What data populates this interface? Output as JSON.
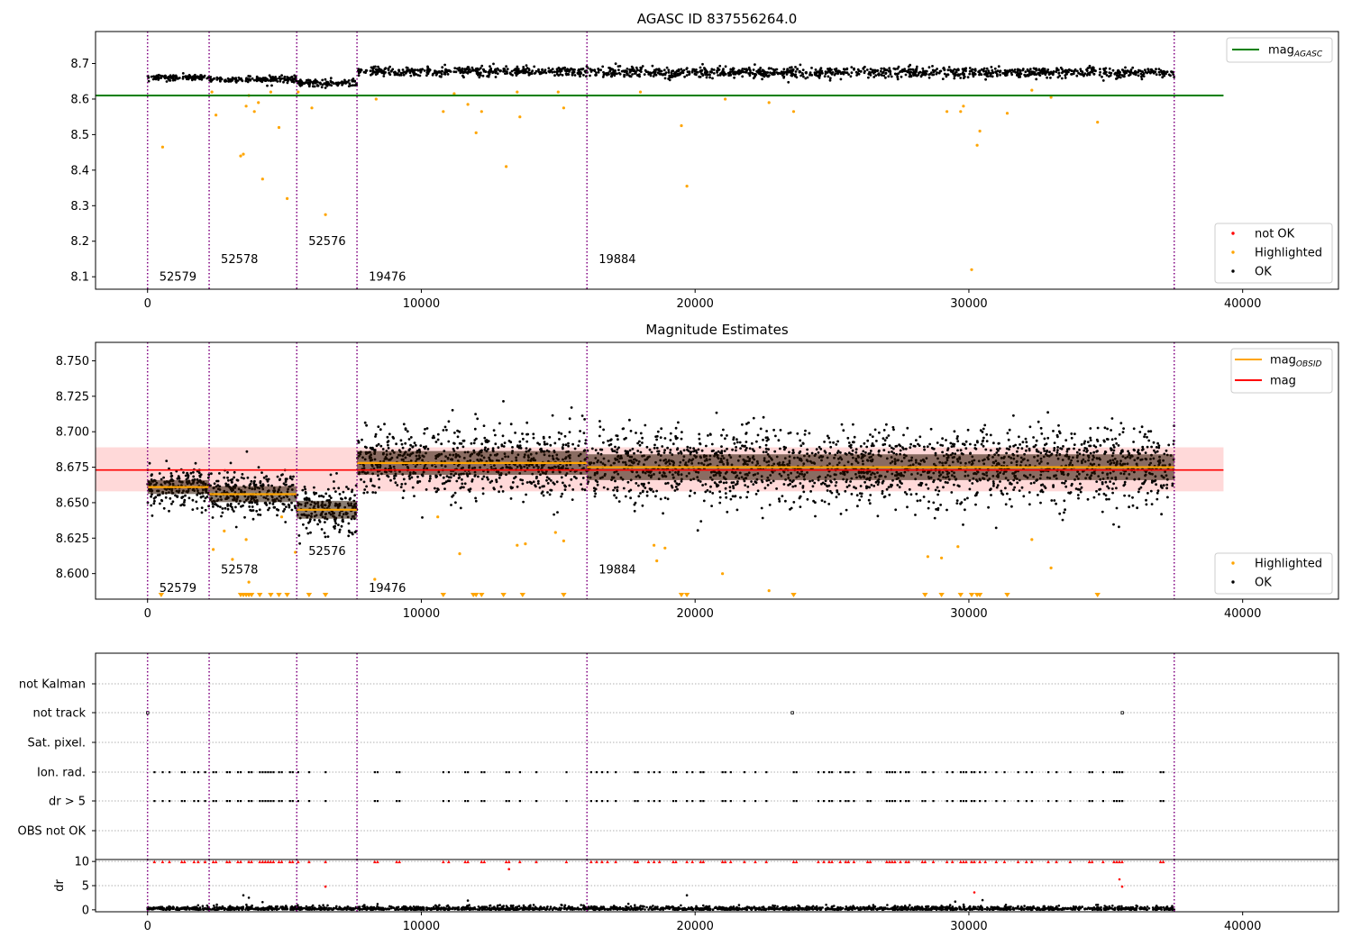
{
  "colors": {
    "ok": "#000000",
    "highlighted": "#ffa500",
    "not_ok": "#ff0000",
    "mag_agasc_line": "#008000",
    "mag_line": "#ff0000",
    "mag_band": "#ffd9d9",
    "mag_obsid_line": "#ffa500",
    "obs_boundary": "#800080",
    "grid": "#b0b0b0"
  },
  "chart_data": [
    {
      "type": "scatter",
      "title": "AGASC ID 837556264.0",
      "xlim": [
        -1900,
        43500
      ],
      "ylim": [
        8.065,
        8.79
      ],
      "xticks": [
        0,
        10000,
        20000,
        30000,
        40000
      ],
      "yticks": [
        8.1,
        8.2,
        8.3,
        8.4,
        8.5,
        8.6,
        8.7
      ],
      "ytick_labels": [
        "8.1",
        "8.2",
        "8.3",
        "8.4",
        "8.5",
        "8.6",
        "8.7"
      ],
      "legend_lines": [
        {
          "label": "mag",
          "sub": "AGASC",
          "color": "#008000"
        }
      ],
      "legend_points": [
        {
          "label": "not OK",
          "color": "#ff0000"
        },
        {
          "label": "Highlighted",
          "color": "#ffa500"
        },
        {
          "label": "OK",
          "color": "#000000"
        }
      ],
      "mag_agasc": 8.61,
      "mag_agasc_xrange": [
        -1900,
        39300
      ],
      "obs_boundaries": [
        0,
        2250,
        5450,
        7650,
        16050,
        37500
      ],
      "observations": [
        {
          "label": "52579",
          "x_start": 0,
          "x_end": 2250,
          "mean": 8.661,
          "spread": 0.007,
          "label_y": 8.1
        },
        {
          "label": "52578",
          "x_start": 2250,
          "x_end": 5450,
          "mean": 8.656,
          "spread": 0.008,
          "label_y": 8.15
        },
        {
          "label": "52576",
          "x_start": 5450,
          "x_end": 7650,
          "mean": 8.645,
          "spread": 0.009,
          "label_y": 8.2
        },
        {
          "label": "19476",
          "x_start": 7650,
          "x_end": 16050,
          "mean": 8.678,
          "spread": 0.012,
          "label_y": 8.1
        },
        {
          "label": "19884",
          "x_start": 16050,
          "x_end": 37500,
          "mean": 8.675,
          "spread": 0.013,
          "label_y": 8.15
        }
      ],
      "highlighted_points": [
        [
          550,
          8.465
        ],
        [
          2350,
          8.62
        ],
        [
          2500,
          8.555
        ],
        [
          3400,
          8.44
        ],
        [
          3500,
          8.445
        ],
        [
          3600,
          8.58
        ],
        [
          3700,
          8.61
        ],
        [
          3900,
          8.565
        ],
        [
          4050,
          8.59
        ],
        [
          4200,
          8.375
        ],
        [
          4500,
          8.62
        ],
        [
          4800,
          8.52
        ],
        [
          5100,
          8.32
        ],
        [
          5500,
          8.62
        ],
        [
          6000,
          8.575
        ],
        [
          6500,
          8.275
        ],
        [
          8350,
          8.6
        ],
        [
          10800,
          8.565
        ],
        [
          11200,
          8.615
        ],
        [
          11700,
          8.585
        ],
        [
          12000,
          8.505
        ],
        [
          12200,
          8.565
        ],
        [
          13100,
          8.41
        ],
        [
          13500,
          8.62
        ],
        [
          13600,
          8.55
        ],
        [
          15000,
          8.62
        ],
        [
          15200,
          8.575
        ],
        [
          18000,
          8.62
        ],
        [
          19500,
          8.525
        ],
        [
          19700,
          8.355
        ],
        [
          21100,
          8.6
        ],
        [
          22700,
          8.59
        ],
        [
          23600,
          8.565
        ],
        [
          29200,
          8.565
        ],
        [
          29700,
          8.565
        ],
        [
          29800,
          8.58
        ],
        [
          30100,
          8.12
        ],
        [
          30300,
          8.47
        ],
        [
          30400,
          8.51
        ],
        [
          31400,
          8.56
        ],
        [
          32300,
          8.625
        ],
        [
          33000,
          8.605
        ],
        [
          34700,
          8.535
        ]
      ]
    },
    {
      "type": "scatter",
      "title": "Magnitude Estimates",
      "xlim": [
        -1900,
        43500
      ],
      "ylim": [
        8.582,
        8.763
      ],
      "xticks": [
        0,
        10000,
        20000,
        30000,
        40000
      ],
      "yticks": [
        8.6,
        8.625,
        8.65,
        8.675,
        8.7,
        8.725,
        8.75
      ],
      "ytick_labels": [
        "8.600",
        "8.625",
        "8.650",
        "8.675",
        "8.700",
        "8.725",
        "8.750"
      ],
      "legend_lines": [
        {
          "label": "mag",
          "sub": "OBSID",
          "color": "#ffa500"
        },
        {
          "label": "mag",
          "sub": "",
          "color": "#ff0000"
        }
      ],
      "legend_points": [
        {
          "label": "Highlighted",
          "color": "#ffa500"
        },
        {
          "label": "OK",
          "color": "#000000"
        }
      ],
      "mag": 8.673,
      "mag_band": [
        8.658,
        8.689
      ],
      "mag_xrange": [
        -1900,
        39300
      ],
      "obs_label_y": [
        8.59,
        8.603,
        8.616,
        8.59,
        8.603
      ],
      "highlighted_points": [
        [
          2400,
          8.617
        ],
        [
          2800,
          8.63
        ],
        [
          3100,
          8.61
        ],
        [
          3600,
          8.624
        ],
        [
          3700,
          8.594
        ],
        [
          4900,
          8.64
        ],
        [
          5400,
          8.615
        ],
        [
          8300,
          8.596
        ],
        [
          10600,
          8.64
        ],
        [
          11400,
          8.614
        ],
        [
          13500,
          8.62
        ],
        [
          13800,
          8.621
        ],
        [
          14900,
          8.629
        ],
        [
          15200,
          8.623
        ],
        [
          18500,
          8.62
        ],
        [
          18600,
          8.609
        ],
        [
          18900,
          8.618
        ],
        [
          21000,
          8.6
        ],
        [
          22700,
          8.588
        ],
        [
          28500,
          8.612
        ],
        [
          29000,
          8.611
        ],
        [
          29600,
          8.619
        ],
        [
          32300,
          8.624
        ],
        [
          33000,
          8.604
        ]
      ],
      "below_range_markers": [
        500,
        3400,
        3500,
        3600,
        3700,
        3800,
        4100,
        4500,
        4800,
        5100,
        5900,
        6500,
        10800,
        11900,
        12000,
        12200,
        13000,
        13700,
        15200,
        19500,
        19700,
        23600,
        28400,
        29000,
        29700,
        30100,
        30300,
        30400,
        31400,
        34700
      ]
    },
    {
      "type": "scatter",
      "title": "",
      "xlim": [
        -1900,
        43500
      ],
      "xticks": [
        0,
        10000,
        20000,
        30000,
        40000
      ],
      "flag_labels": [
        "not Kalman",
        "not track",
        "Sat. pixel.",
        "Ion. rad.",
        "dr > 5",
        "OBS not OK"
      ],
      "not_track_x": [
        0,
        23550,
        35600
      ],
      "ion_rad_x": [
        250,
        550,
        800,
        1250,
        1350,
        1700,
        1850,
        2100,
        2400,
        2500,
        2900,
        3000,
        3300,
        3400,
        3700,
        3800,
        4100,
        4200,
        4300,
        4400,
        4500,
        4600,
        4800,
        4900,
        5200,
        5300,
        5500,
        5900,
        6500,
        8300,
        8400,
        9100,
        9200,
        10800,
        11000,
        11600,
        11700,
        12200,
        12300,
        13100,
        13200,
        13600,
        14200,
        15300,
        16200,
        16400,
        16600,
        16800,
        17100,
        17800,
        17900,
        18300,
        18500,
        18700,
        19200,
        19300,
        19700,
        19900,
        20200,
        20300,
        21000,
        21100,
        21300,
        21800,
        22200,
        22600,
        23600,
        23700,
        24500,
        24700,
        24900,
        25000,
        25300,
        25500,
        25600,
        25800,
        26300,
        26400,
        27000,
        27100,
        27200,
        27300,
        27500,
        27700,
        27800,
        28300,
        28400,
        28700,
        29200,
        29400,
        29700,
        29800,
        29900,
        30100,
        30200,
        30400,
        30600,
        31000,
        31300,
        31800,
        32100,
        32300,
        32900,
        33200,
        33700,
        34400,
        34500,
        34900,
        35300,
        35400,
        35500,
        35600,
        37000,
        37100
      ],
      "dr_label": "dr",
      "dr_ylim": [
        -0.4,
        10.4
      ],
      "dr_yticks": [
        0,
        5,
        10
      ],
      "dr_ytick_labels": [
        "0",
        "5",
        "10"
      ],
      "dr_outliers_ok": [
        [
          3500,
          3.0
        ],
        [
          3700,
          2.5
        ],
        [
          4200,
          1.6
        ],
        [
          8400,
          1.2
        ],
        [
          11700,
          1.9
        ],
        [
          19700,
          3.0
        ],
        [
          29500,
          1.7
        ],
        [
          30500,
          2.0
        ]
      ],
      "dr_outliers_not_ok": [
        [
          6500,
          4.8
        ],
        [
          13200,
          8.4
        ],
        [
          30200,
          3.6
        ],
        [
          35500,
          6.3
        ],
        [
          35600,
          4.8
        ]
      ]
    }
  ]
}
